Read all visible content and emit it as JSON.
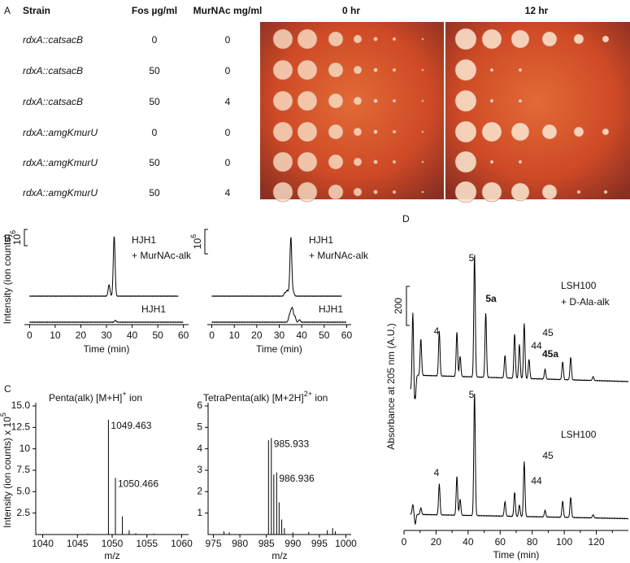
{
  "panel_labels": {
    "a": "A",
    "b": "B",
    "c": "C",
    "d": "D"
  },
  "panel_a": {
    "headers": [
      "Strain",
      "Fos µg/ml",
      "MurNAc mg/ml",
      "0 hr",
      "12 hr"
    ],
    "rows": [
      [
        "rdxA::catsacB",
        0,
        0
      ],
      [
        "rdxA::catsacB",
        50,
        0
      ],
      [
        "rdxA::catsacB",
        50,
        4
      ],
      [
        "rdxA::amgKmurU",
        0,
        0
      ],
      [
        "rdxA::amgKmurU",
        50,
        0
      ],
      [
        "rdxA::amgKmurU",
        50,
        4
      ]
    ]
  },
  "panel_b": {
    "y_label": "Intensity (ion counts)",
    "charts": [
      {
        "xlim": [
          -2,
          62
        ],
        "xticks": [
          0,
          10,
          20,
          30,
          40,
          50,
          60
        ],
        "x_label": "Time (min)",
        "scale_label": {
          "base": "10",
          "exponent": "6"
        },
        "trace_labels": [
          "HJH1",
          "+ MurNAc-alk",
          "HJH1"
        ]
      },
      {
        "xlim": [
          -2,
          62
        ],
        "xticks": [
          0,
          10,
          20,
          30,
          40,
          50,
          60
        ],
        "x_label": "Time (min)",
        "scale_label": {
          "base": "10",
          "exponent": "6"
        },
        "trace_labels": [
          "HJH1",
          "+ MurNAc-alk",
          "HJH1"
        ]
      }
    ]
  },
  "panel_c": {
    "y_label": {
      "text": "Intensity (ion counts) x 10",
      "exponent": "5"
    },
    "charts": [
      {
        "title": [
          "Penta(alk)",
          " [M+H]",
          "+",
          " ion"
        ],
        "x_label": "m/z",
        "xlim": [
          1039,
          1061
        ],
        "xticks": [
          1040,
          1045,
          1050,
          1055,
          1060
        ],
        "ylim": [
          0,
          15
        ],
        "yticks": [
          2.5,
          {
            "value": 5,
            "label": "5.0"
          },
          7.5,
          10,
          12.5,
          {
            "value": 15,
            "label": "15.0"
          }
        ],
        "peaks": [
          {
            "x": 1049.463,
            "y": 13.4
          },
          {
            "x": 1050.466,
            "y": 6.6
          }
        ]
      },
      {
        "title": [
          "TetraPenta(alk)",
          " [M+2H]",
          "2+",
          " ion"
        ],
        "x_label": "m/z",
        "xlim": [
          974,
          1001
        ],
        "xticks": [
          975,
          980,
          985,
          990,
          995,
          1000
        ],
        "ylim": [
          0,
          6
        ],
        "yticks": [
          1,
          2,
          3,
          4,
          5,
          6
        ],
        "peaks": [
          {
            "x": 985.933,
            "y": 4.5
          },
          {
            "x": 986.936,
            "y": 2.9
          }
        ]
      }
    ]
  },
  "panel_d": {
    "y_label": "Absorbance at 205 nm (A.U.)",
    "x_label": "Time (min)",
    "xlim": [
      0,
      140
    ],
    "xticks": [
      0,
      20,
      40,
      60,
      80,
      100,
      120
    ],
    "scale_label": "200",
    "upper": {
      "name": "LSH100",
      "condition": "+ D-Ala-alk",
      "peak_labels": [
        "5",
        "5a",
        "4",
        "44",
        "45",
        "45a"
      ]
    },
    "lower": {
      "name": "LSH100",
      "peak_labels": [
        "5",
        "4",
        "44",
        "45"
      ]
    }
  }
}
